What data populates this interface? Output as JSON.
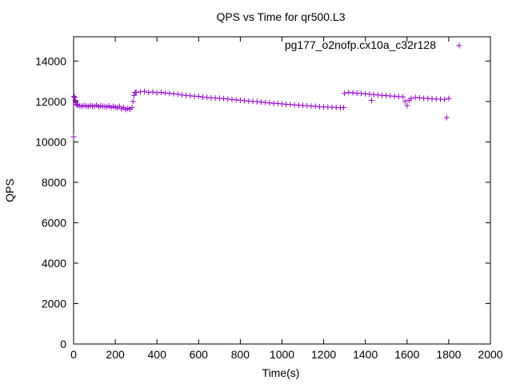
{
  "chart_data": {
    "type": "scatter",
    "title": "QPS vs Time for qr500.L3",
    "xlabel": "Time(s)",
    "ylabel": "QPS",
    "xlim": [
      0,
      2000
    ],
    "ylim": [
      0,
      15200
    ],
    "xticks": [
      0,
      200,
      400,
      600,
      800,
      1000,
      1200,
      1400,
      1600,
      1800,
      2000
    ],
    "yticks": [
      0,
      2000,
      4000,
      6000,
      8000,
      10000,
      12000,
      14000
    ],
    "grid": false,
    "legend_position": "top-right",
    "series": [
      {
        "name": "pg177_o2nofp.cx10a_c32r128",
        "marker": "+",
        "color": "#9400d3",
        "points": [
          [
            0,
            10250
          ],
          [
            2,
            12250
          ],
          [
            5,
            12200
          ],
          [
            8,
            12050
          ],
          [
            10,
            11950
          ],
          [
            15,
            11850
          ],
          [
            20,
            11800
          ],
          [
            30,
            11780
          ],
          [
            40,
            11760
          ],
          [
            50,
            11800
          ],
          [
            60,
            11780
          ],
          [
            70,
            11750
          ],
          [
            80,
            11800
          ],
          [
            90,
            11770
          ],
          [
            100,
            11760
          ],
          [
            110,
            11820
          ],
          [
            120,
            11740
          ],
          [
            130,
            11780
          ],
          [
            140,
            11760
          ],
          [
            150,
            11750
          ],
          [
            160,
            11730
          ],
          [
            170,
            11780
          ],
          [
            180,
            11700
          ],
          [
            190,
            11760
          ],
          [
            200,
            11720
          ],
          [
            210,
            11680
          ],
          [
            220,
            11760
          ],
          [
            230,
            11640
          ],
          [
            240,
            11700
          ],
          [
            250,
            11600
          ],
          [
            260,
            11650
          ],
          [
            270,
            11620
          ],
          [
            280,
            11700
          ],
          [
            285,
            12000
          ],
          [
            290,
            12300
          ],
          [
            295,
            12450
          ],
          [
            300,
            12450
          ],
          [
            320,
            12480
          ],
          [
            340,
            12500
          ],
          [
            360,
            12450
          ],
          [
            380,
            12470
          ],
          [
            400,
            12430
          ],
          [
            420,
            12450
          ],
          [
            440,
            12420
          ],
          [
            460,
            12400
          ],
          [
            480,
            12380
          ],
          [
            500,
            12360
          ],
          [
            520,
            12320
          ],
          [
            540,
            12300
          ],
          [
            560,
            12280
          ],
          [
            580,
            12260
          ],
          [
            600,
            12250
          ],
          [
            620,
            12220
          ],
          [
            640,
            12200
          ],
          [
            660,
            12180
          ],
          [
            680,
            12170
          ],
          [
            700,
            12160
          ],
          [
            720,
            12140
          ],
          [
            740,
            12120
          ],
          [
            760,
            12100
          ],
          [
            780,
            12080
          ],
          [
            800,
            12060
          ],
          [
            820,
            12040
          ],
          [
            840,
            12020
          ],
          [
            860,
            12000
          ],
          [
            880,
            11990
          ],
          [
            900,
            11970
          ],
          [
            920,
            11950
          ],
          [
            940,
            11930
          ],
          [
            960,
            11910
          ],
          [
            980,
            11900
          ],
          [
            1000,
            11880
          ],
          [
            1020,
            11860
          ],
          [
            1040,
            11850
          ],
          [
            1060,
            11830
          ],
          [
            1080,
            11820
          ],
          [
            1100,
            11800
          ],
          [
            1120,
            11790
          ],
          [
            1140,
            11770
          ],
          [
            1160,
            11760
          ],
          [
            1180,
            11740
          ],
          [
            1200,
            11730
          ],
          [
            1220,
            11720
          ],
          [
            1240,
            11710
          ],
          [
            1260,
            11700
          ],
          [
            1280,
            11690
          ],
          [
            1295,
            11700
          ],
          [
            1300,
            12400
          ],
          [
            1320,
            12450
          ],
          [
            1340,
            12430
          ],
          [
            1360,
            12410
          ],
          [
            1380,
            12400
          ],
          [
            1400,
            12380
          ],
          [
            1420,
            12360
          ],
          [
            1430,
            12050
          ],
          [
            1440,
            12340
          ],
          [
            1460,
            12320
          ],
          [
            1480,
            12300
          ],
          [
            1500,
            12290
          ],
          [
            1520,
            12270
          ],
          [
            1540,
            12260
          ],
          [
            1560,
            12240
          ],
          [
            1580,
            12230
          ],
          [
            1590,
            12000
          ],
          [
            1600,
            11800
          ],
          [
            1610,
            12050
          ],
          [
            1620,
            12150
          ],
          [
            1640,
            12200
          ],
          [
            1660,
            12180
          ],
          [
            1680,
            12160
          ],
          [
            1700,
            12150
          ],
          [
            1720,
            12130
          ],
          [
            1740,
            12120
          ],
          [
            1760,
            12110
          ],
          [
            1780,
            12100
          ],
          [
            1790,
            11200
          ],
          [
            1800,
            12150
          ]
        ]
      }
    ]
  }
}
